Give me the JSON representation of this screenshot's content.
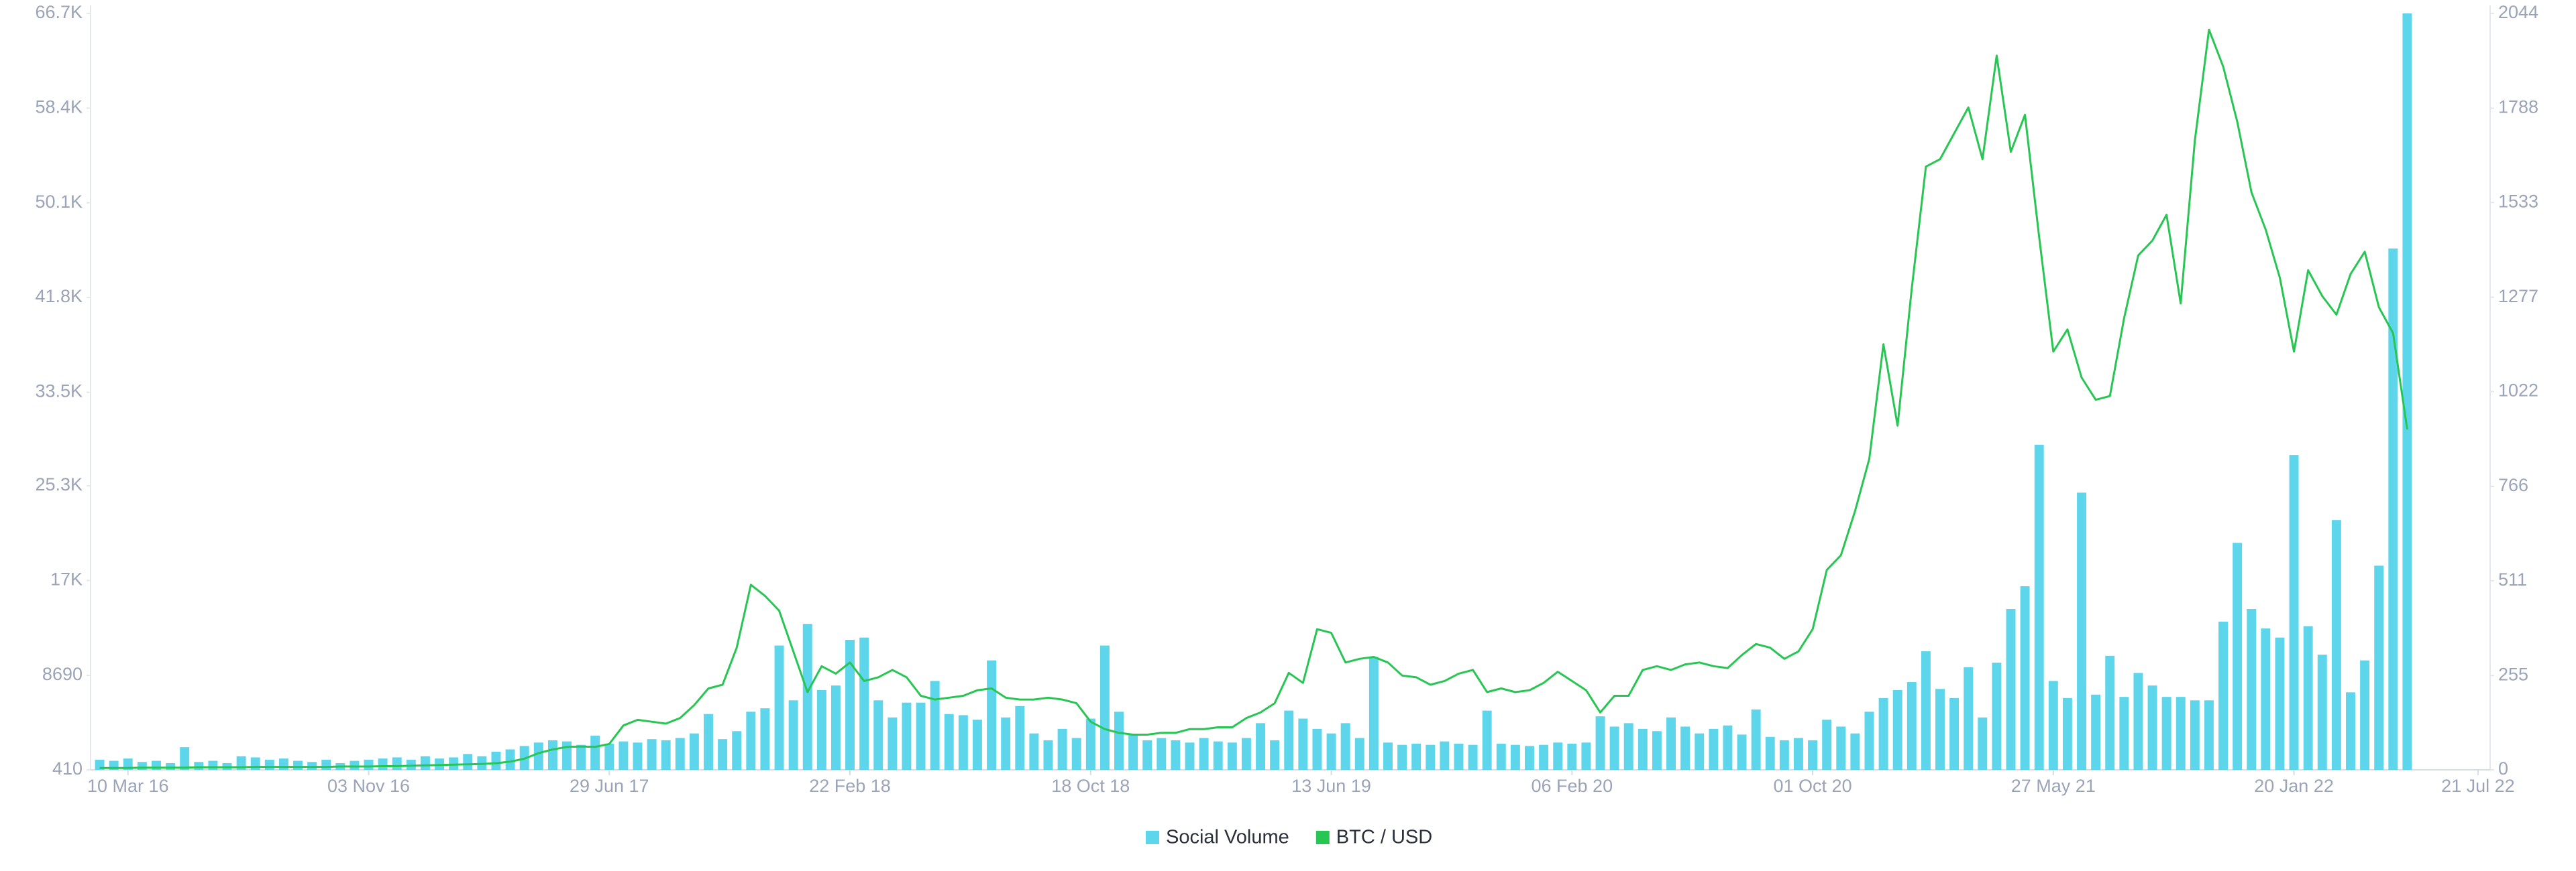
{
  "chart_data": {
    "type": "bar",
    "x": [
      "2016-02-11",
      "2016-02-25",
      "2016-03-10",
      "2016-03-24",
      "2016-04-07",
      "2016-04-21",
      "2016-05-05",
      "2016-05-19",
      "2016-06-02",
      "2016-06-16",
      "2016-06-30",
      "2016-07-14",
      "2016-07-28",
      "2016-08-11",
      "2016-08-25",
      "2016-09-08",
      "2016-09-22",
      "2016-10-06",
      "2016-10-20",
      "2016-11-03",
      "2016-11-17",
      "2016-12-01",
      "2016-12-15",
      "2016-12-29",
      "2017-01-12",
      "2017-01-26",
      "2017-02-09",
      "2017-02-23",
      "2017-03-09",
      "2017-03-23",
      "2017-04-06",
      "2017-04-20",
      "2017-05-04",
      "2017-05-18",
      "2017-06-01",
      "2017-06-15",
      "2017-06-29",
      "2017-07-13",
      "2017-07-27",
      "2017-08-10",
      "2017-08-24",
      "2017-09-07",
      "2017-09-21",
      "2017-10-05",
      "2017-10-19",
      "2017-11-02",
      "2017-11-16",
      "2017-11-30",
      "2017-12-14",
      "2017-12-28",
      "2018-01-11",
      "2018-01-25",
      "2018-02-08",
      "2018-02-22",
      "2018-03-08",
      "2018-03-22",
      "2018-04-05",
      "2018-04-19",
      "2018-05-03",
      "2018-05-17",
      "2018-05-31",
      "2018-06-14",
      "2018-06-28",
      "2018-07-12",
      "2018-07-26",
      "2018-08-09",
      "2018-08-23",
      "2018-09-06",
      "2018-09-20",
      "2018-10-04",
      "2018-10-18",
      "2018-11-01",
      "2018-11-15",
      "2018-11-29",
      "2018-12-13",
      "2018-12-27",
      "2019-01-10",
      "2019-01-24",
      "2019-02-07",
      "2019-02-21",
      "2019-03-07",
      "2019-03-21",
      "2019-04-04",
      "2019-04-18",
      "2019-05-02",
      "2019-05-16",
      "2019-05-30",
      "2019-06-13",
      "2019-06-27",
      "2019-07-11",
      "2019-07-25",
      "2019-08-08",
      "2019-08-22",
      "2019-09-05",
      "2019-09-19",
      "2019-10-03",
      "2019-10-17",
      "2019-10-31",
      "2019-11-14",
      "2019-11-28",
      "2019-12-12",
      "2019-12-26",
      "2020-01-09",
      "2020-01-23",
      "2020-02-06",
      "2020-02-20",
      "2020-03-05",
      "2020-03-19",
      "2020-04-02",
      "2020-04-16",
      "2020-04-30",
      "2020-05-14",
      "2020-05-28",
      "2020-06-11",
      "2020-06-25",
      "2020-07-09",
      "2020-07-23",
      "2020-08-06",
      "2020-08-20",
      "2020-09-03",
      "2020-09-17",
      "2020-10-01",
      "2020-10-15",
      "2020-10-29",
      "2020-11-12",
      "2020-11-26",
      "2020-12-10",
      "2020-12-24",
      "2021-01-07",
      "2021-01-21",
      "2021-02-04",
      "2021-02-18",
      "2021-03-04",
      "2021-03-18",
      "2021-04-01",
      "2021-04-15",
      "2021-04-29",
      "2021-05-13",
      "2021-05-27",
      "2021-06-10",
      "2021-06-24",
      "2021-07-08",
      "2021-07-22",
      "2021-08-05",
      "2021-08-19",
      "2021-09-02",
      "2021-09-16",
      "2021-09-30",
      "2021-10-14",
      "2021-10-28",
      "2021-11-11",
      "2021-11-25",
      "2021-12-09",
      "2021-12-23",
      "2022-01-06",
      "2022-01-20",
      "2022-02-03",
      "2022-02-17",
      "2022-03-03",
      "2022-03-17",
      "2022-03-31",
      "2022-04-14",
      "2022-04-28",
      "2022-05-12"
    ],
    "series": [
      {
        "name": "Social Volume",
        "type": "bar",
        "color": "#5dd6ec",
        "values": [
          1300,
          1200,
          1400,
          1100,
          1200,
          1000,
          2400,
          1100,
          1200,
          1000,
          1600,
          1500,
          1300,
          1400,
          1200,
          1100,
          1300,
          1000,
          1200,
          1300,
          1400,
          1500,
          1300,
          1600,
          1400,
          1500,
          1800,
          1600,
          2000,
          2200,
          2500,
          2800,
          3000,
          2900,
          2600,
          3400,
          2700,
          2900,
          2800,
          3100,
          3000,
          3200,
          3600,
          5300,
          3100,
          3800,
          5500,
          5800,
          11300,
          6500,
          13200,
          7400,
          7800,
          11800,
          12000,
          6500,
          5000,
          6300,
          6300,
          8200,
          5300,
          5200,
          4800,
          10000,
          5000,
          6000,
          3600,
          3000,
          4000,
          3200,
          4900,
          11300,
          5500,
          3500,
          3000,
          3200,
          3000,
          2800,
          3200,
          2900,
          2800,
          3200,
          4500,
          3000,
          5600,
          4900,
          4000,
          3600,
          4500,
          3200,
          10300,
          2800,
          2600,
          2700,
          2600,
          2900,
          2700,
          2600,
          5600,
          2700,
          2600,
          2500,
          2600,
          2800,
          2700,
          2800,
          5100,
          4200,
          4500,
          4000,
          3800,
          5000,
          4200,
          3600,
          4000,
          4300,
          3500,
          5700,
          3300,
          3000,
          3200,
          3000,
          4800,
          4200,
          3600,
          5500,
          6700,
          7400,
          8100,
          10800,
          7500,
          6700,
          9400,
          5000,
          9800,
          14500,
          16500,
          28900,
          8200,
          6700,
          24700,
          7000,
          10400,
          6800,
          8900,
          7800,
          6800,
          6800,
          6500,
          6500,
          13400,
          20300,
          14500,
          12800,
          12000,
          28000,
          13000,
          10500,
          22300,
          7200,
          10000,
          18300,
          46100,
          66700
        ]
      },
      {
        "name": "BTC / USD",
        "type": "line",
        "axis": "y2",
        "color": "#27c653",
        "values": [
          5,
          5,
          5,
          6,
          6,
          6,
          6,
          7,
          7,
          7,
          7,
          8,
          8,
          8,
          8,
          8,
          8,
          9,
          9,
          9,
          10,
          10,
          11,
          12,
          13,
          14,
          15,
          16,
          18,
          22,
          30,
          45,
          55,
          62,
          63,
          62,
          70,
          120,
          135,
          130,
          125,
          140,
          175,
          220,
          230,
          330,
          500,
          470,
          430,
          320,
          210,
          280,
          260,
          290,
          240,
          250,
          270,
          250,
          200,
          190,
          195,
          200,
          215,
          220,
          195,
          190,
          190,
          195,
          190,
          180,
          130,
          110,
          100,
          95,
          95,
          100,
          100,
          110,
          110,
          115,
          115,
          140,
          155,
          180,
          262,
          235,
          380,
          370,
          290,
          300,
          305,
          290,
          255,
          250,
          230,
          240,
          260,
          270,
          210,
          220,
          210,
          215,
          235,
          265,
          240,
          215,
          155,
          200,
          200,
          270,
          280,
          270,
          285,
          290,
          280,
          275,
          310,
          340,
          330,
          300,
          320,
          380,
          540,
          580,
          700,
          840,
          1150,
          930,
          1300,
          1630,
          1650,
          1720,
          1790,
          1650,
          1930,
          1670,
          1770,
          1440,
          1130,
          1190,
          1060,
          1000,
          1010,
          1220,
          1390,
          1430,
          1500,
          1260,
          1700,
          2000,
          1900,
          1750,
          1560,
          1460,
          1330,
          1130,
          1350,
          1280,
          1230,
          1340,
          1400,
          1250,
          1180,
          920
        ]
      }
    ],
    "xlim": [
      "2016-02-02",
      "2022-08-02"
    ],
    "xticks": [
      {
        "value": "2016-03-10",
        "label": "10 Mar 16"
      },
      {
        "value": "2016-11-03",
        "label": "03 Nov 16"
      },
      {
        "value": "2017-06-29",
        "label": "29 Jun 17"
      },
      {
        "value": "2018-02-22",
        "label": "22 Feb 18"
      },
      {
        "value": "2018-10-18",
        "label": "18 Oct 18"
      },
      {
        "value": "2019-06-13",
        "label": "13 Jun 19"
      },
      {
        "value": "2020-02-06",
        "label": "06 Feb 20"
      },
      {
        "value": "2020-10-01",
        "label": "01 Oct 20"
      },
      {
        "value": "2021-05-27",
        "label": "27 May 21"
      },
      {
        "value": "2022-01-20",
        "label": "20 Jan 22"
      },
      {
        "value": "2022-07-21",
        "label": "21 Jul 22"
      }
    ],
    "ylim": [
      410,
      66700
    ],
    "yticks": [
      410,
      8690,
      {
        "value": 17000,
        "label": "17K"
      },
      {
        "value": 25300,
        "label": "25.3K"
      },
      {
        "value": 33500,
        "label": "33.5K"
      },
      {
        "value": 41800,
        "label": "41.8K"
      },
      {
        "value": 50100,
        "label": "50.1K"
      },
      {
        "value": 58400,
        "label": "58.4K"
      },
      {
        "value": 66700,
        "label": "66.7K"
      }
    ],
    "y2lim": [
      0,
      2044
    ],
    "y2ticks": [
      0,
      255,
      511,
      766,
      1022,
      1277,
      1533,
      1788,
      2044
    ],
    "legend": "bottom"
  }
}
